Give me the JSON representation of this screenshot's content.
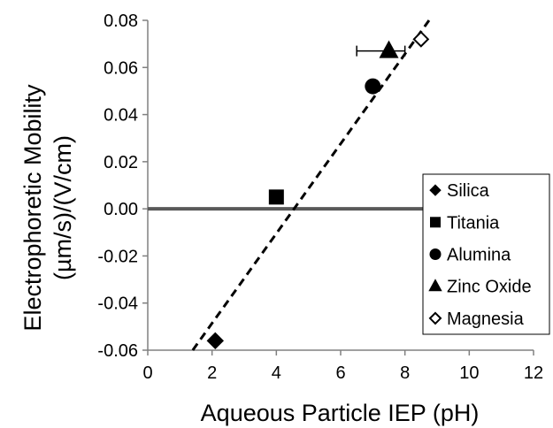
{
  "chart_data": {
    "type": "scatter",
    "xlabel": "Aqueous Particle IEP (pH)",
    "ylabel_lines": [
      "Electrophoretic Mobility",
      "(µm/s)/(V/cm)"
    ],
    "xlim": [
      0,
      12
    ],
    "ylim": [
      -0.06,
      0.08
    ],
    "xticks": [
      0,
      2,
      4,
      6,
      8,
      10,
      12
    ],
    "xtick_labels": [
      "0",
      "2",
      "4",
      "6",
      "8",
      "10",
      "12"
    ],
    "yticks": [
      -0.06,
      -0.04,
      -0.02,
      0.0,
      0.02,
      0.04,
      0.06,
      0.08
    ],
    "ytick_labels": [
      "-0.06",
      "-0.04",
      "-0.02",
      "0.00",
      "0.02",
      "0.04",
      "0.06",
      "0.08"
    ],
    "grid": false,
    "legend_position": "bottom-right",
    "series": [
      {
        "name": "Silica",
        "marker": "diamond-filled",
        "x": 2.1,
        "y": -0.056
      },
      {
        "name": "Titania",
        "marker": "square-filled",
        "x": 4.0,
        "y": 0.005
      },
      {
        "name": "Alumina",
        "marker": "circle-filled",
        "x": 7.0,
        "y": 0.052
      },
      {
        "name": "Zinc Oxide",
        "marker": "triangle-filled",
        "x": 7.5,
        "y": 0.067,
        "x_error": [
          6.5,
          8.0
        ]
      },
      {
        "name": "Magnesia",
        "marker": "diamond-open",
        "x": 8.5,
        "y": 0.072
      }
    ],
    "reference_line": {
      "y": 0.0,
      "x_from": 0,
      "x_to": 12
    },
    "trend_line": {
      "style": "dashed",
      "from": [
        1.4,
        -0.06
      ],
      "to": [
        8.75,
        0.08
      ]
    }
  }
}
